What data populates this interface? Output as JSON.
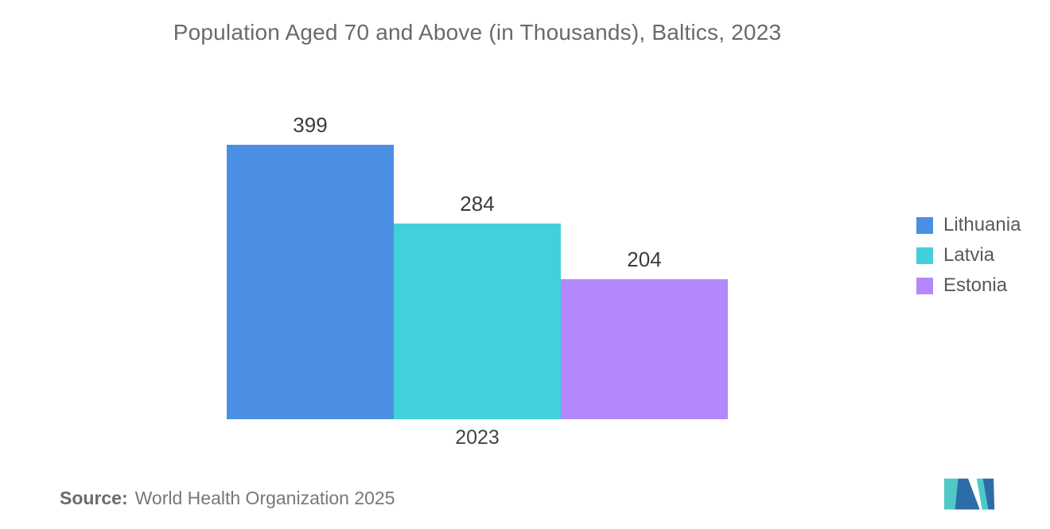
{
  "page": {
    "title": "Population Aged 70 and Above (in Thousands), Baltics, 2023",
    "source_label": "Source:",
    "source_text": "World Health Organization 2025",
    "logo_name": "mordor-intelligence-logo"
  },
  "colors": {
    "lithuania_bar": "#4A8FE4",
    "latvia_bar": "#42D1DB",
    "estonia_bar": "#B388FA",
    "title_text": "#6A6A6A",
    "value_label_text": "#3C3C3C",
    "axis_label_text": "#454545",
    "legend_text": "#595959",
    "source_text": "#787878",
    "logo_blue": "#2D6CA8",
    "logo_teal": "#4EC9C6"
  },
  "chart_data": {
    "type": "bar",
    "title": "Population Aged 70 and Above (in Thousands), Baltics, 2023",
    "categories": [
      "2023"
    ],
    "series": [
      {
        "name": "Lithuania",
        "values": [
          399
        ],
        "color": "#4A8FE4"
      },
      {
        "name": "Latvia",
        "values": [
          284
        ],
        "color": "#42D1DB"
      },
      {
        "name": "Estonia",
        "values": [
          204
        ],
        "color": "#B388FA"
      }
    ],
    "xlabel": "",
    "ylabel": "",
    "ylim": [
      0,
      500
    ],
    "grid": false,
    "axis_lines": false,
    "legend_position": "right",
    "value_labels_shown": true,
    "source": "World Health Organization 2025"
  },
  "legend": {
    "items": [
      {
        "label": "Lithuania",
        "color": "#4A8FE4"
      },
      {
        "label": "Latvia",
        "color": "#42D1DB"
      },
      {
        "label": "Estonia",
        "color": "#B388FA"
      }
    ]
  }
}
